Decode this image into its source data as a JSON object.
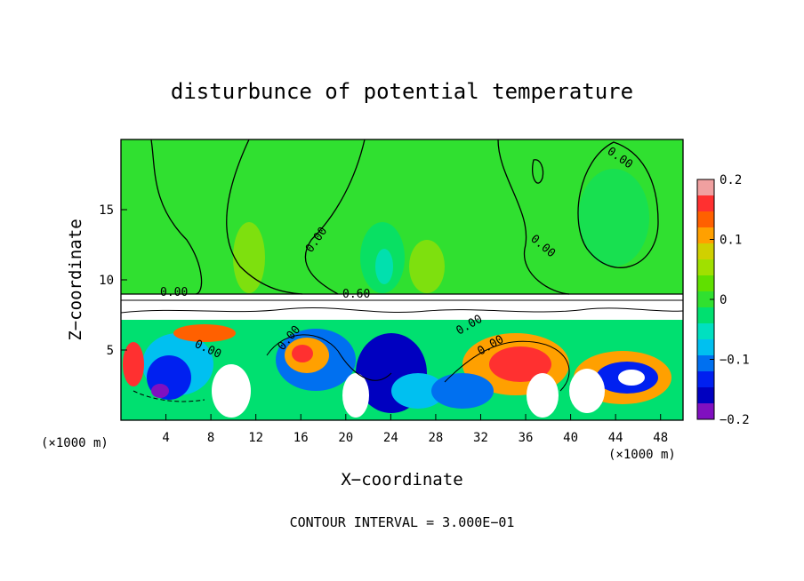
{
  "chart_data": {
    "type": "heatmap",
    "title": "disturbunce of potential temperature",
    "xlabel": "X−coordinate",
    "ylabel": "Z−coordinate",
    "x_unit": "(×1000 m)",
    "y_unit": "(×1000 m)",
    "xlim": [
      0,
      50
    ],
    "ylim": [
      0,
      20
    ],
    "x_ticks": [
      4,
      8,
      12,
      16,
      20,
      24,
      28,
      32,
      36,
      40,
      44,
      48
    ],
    "y_ticks": [
      5,
      10,
      15
    ],
    "footnote": "CONTOUR INTERVAL = 3.000E−01",
    "contour_interval": 0.3,
    "contour_labels": [
      "0.00",
      "0.00",
      "0.00",
      "0.00",
      "0.00",
      "0.00",
      "0.00",
      "0.60",
      "0.00"
    ],
    "colorbar": {
      "min": -0.2,
      "max": 0.2,
      "tick_values": [
        0.2,
        0.1,
        0,
        -0.1,
        -0.2
      ],
      "tick_labels": [
        "0.2",
        "0.1",
        "0",
        "−0.1",
        "−0.2"
      ],
      "colors": [
        "#f0a0a0",
        "#ff3030",
        "#ff6000",
        "#ffa000",
        "#d0d000",
        "#a0e000",
        "#60e000",
        "#30e030",
        "#00e070",
        "#00e0c0",
        "#00c0f0",
        "#0070f0",
        "#0020f0",
        "#0000c0",
        "#8010c0"
      ]
    }
  }
}
